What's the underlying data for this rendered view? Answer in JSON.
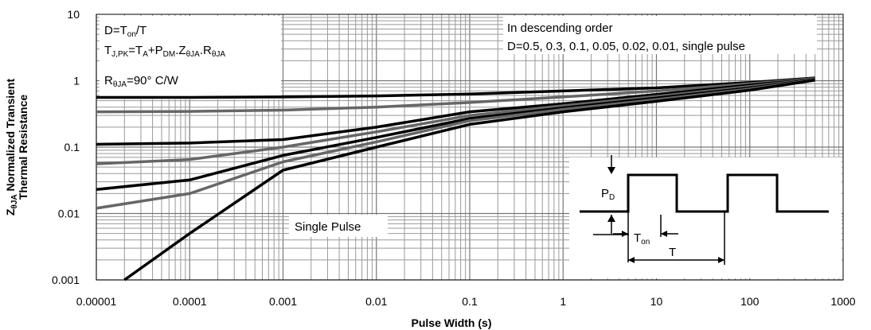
{
  "chart_data": {
    "type": "line",
    "x_scale": "log",
    "y_scale": "log",
    "xlim": [
      1e-05,
      1000
    ],
    "ylim": [
      0.001,
      10
    ],
    "grid": true,
    "xlabel": "Pulse Width (s)",
    "ylabel_line1": "Normalized Transient",
    "ylabel_line2": "Thermal Resistance",
    "ylabel_symbol": "Z",
    "ylabel_subscript": "θJA",
    "x_ticks": [
      "0.00001",
      "0.0001",
      "0.001",
      "0.01",
      "0.1",
      "1",
      "10",
      "100",
      "1000"
    ],
    "y_ticks": [
      "0.001",
      "0.01",
      "0.1",
      "1",
      "10"
    ],
    "annotations": {
      "duty_formula": {
        "a": "D=T",
        "a_sub": "on",
        "b": "/T"
      },
      "tj_formula": {
        "p1": "T",
        "p1_sub": "J,PK",
        "p2": "=T",
        "p2_sub": "A",
        "p3": "+P",
        "p3_sub": "DM",
        "p4": ".Z",
        "p4_sub": "θJA",
        "p5": ".R",
        "p5_sub": "θJA"
      },
      "rja_formula": {
        "a": "R",
        "a_sub": "θJA",
        "b": "=90° C/W"
      },
      "order_title": "In descending order",
      "order_values": "D=0.5, 0.3, 0.1, 0.05, 0.02, 0.01, single pulse",
      "single_pulse_label": "Single Pulse"
    },
    "inset": {
      "pd_label": "P",
      "pd_sub": "D",
      "ton_label": "T",
      "ton_sub": "on",
      "period_label": "T"
    },
    "series": [
      {
        "duty": 0.5,
        "color": "#000000",
        "x": [
          1e-05,
          0.0001,
          0.001,
          0.01,
          0.1,
          1,
          10,
          100,
          500
        ],
        "y": [
          0.56,
          0.56,
          0.57,
          0.59,
          0.63,
          0.7,
          0.78,
          0.94,
          1.1
        ]
      },
      {
        "duty": 0.3,
        "color": "#666666",
        "x": [
          1e-05,
          0.0001,
          0.001,
          0.01,
          0.1,
          1,
          10,
          100,
          500
        ],
        "y": [
          0.34,
          0.345,
          0.36,
          0.4,
          0.47,
          0.57,
          0.7,
          0.9,
          1.08
        ]
      },
      {
        "duty": 0.1,
        "color": "#000000",
        "x": [
          1e-05,
          0.0001,
          0.001,
          0.01,
          0.1,
          1,
          10,
          100,
          500
        ],
        "y": [
          0.11,
          0.115,
          0.13,
          0.2,
          0.34,
          0.45,
          0.62,
          0.86,
          1.06
        ]
      },
      {
        "duty": 0.05,
        "color": "#666666",
        "x": [
          1e-05,
          0.0001,
          0.001,
          0.01,
          0.1,
          1,
          10,
          100,
          500
        ],
        "y": [
          0.056,
          0.065,
          0.1,
          0.17,
          0.3,
          0.42,
          0.58,
          0.82,
          1.05
        ]
      },
      {
        "duty": 0.02,
        "color": "#000000",
        "x": [
          1e-05,
          0.0001,
          0.001,
          0.01,
          0.1,
          1,
          10,
          100,
          500
        ],
        "y": [
          0.023,
          0.032,
          0.075,
          0.14,
          0.27,
          0.39,
          0.55,
          0.78,
          1.04
        ]
      },
      {
        "duty": 0.01,
        "color": "#666666",
        "x": [
          1e-05,
          0.0001,
          0.001,
          0.01,
          0.1,
          1,
          10,
          100,
          500
        ],
        "y": [
          0.012,
          0.02,
          0.06,
          0.12,
          0.25,
          0.37,
          0.52,
          0.75,
          1.03
        ]
      },
      {
        "duty": "single pulse",
        "color": "#000000",
        "x": [
          2e-05,
          0.0001,
          0.001,
          0.01,
          0.1,
          1,
          10,
          100,
          500
        ],
        "y": [
          0.001,
          0.005,
          0.045,
          0.1,
          0.22,
          0.34,
          0.49,
          0.72,
          1.02
        ]
      }
    ]
  }
}
